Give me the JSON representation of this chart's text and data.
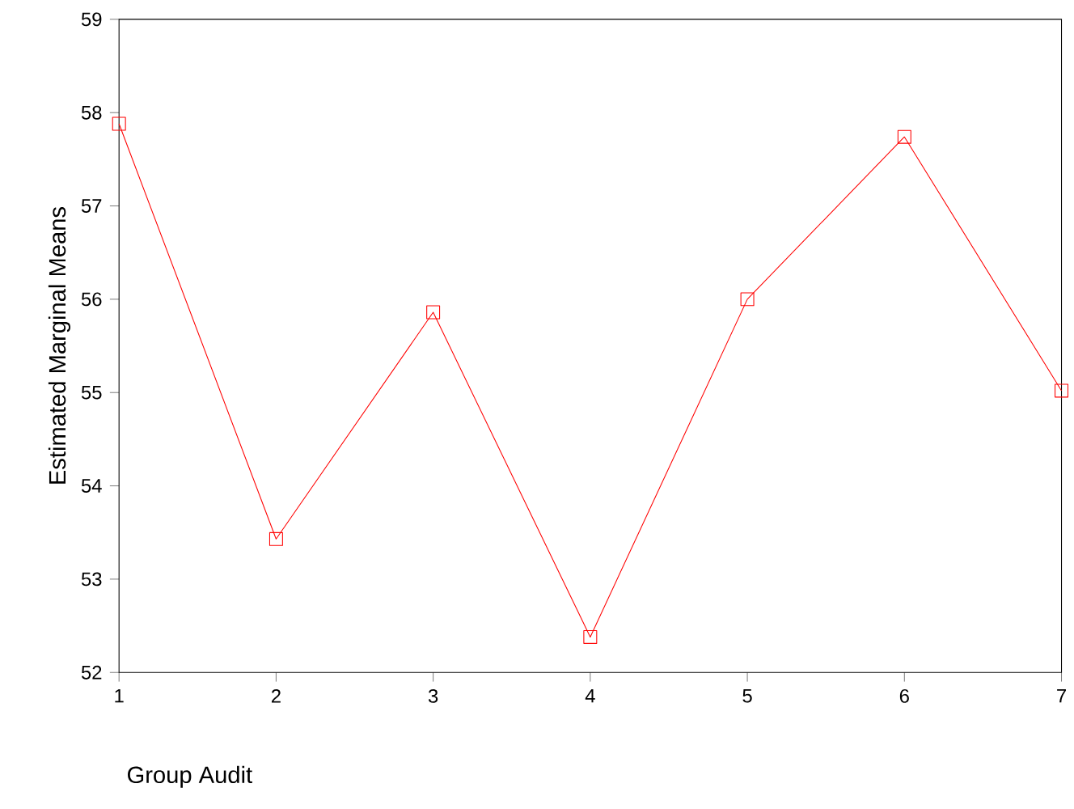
{
  "chart_data": {
    "type": "line",
    "xlabel": "Group Audit",
    "ylabel": "Estimated Marginal Means",
    "categories": [
      "1",
      "2",
      "3",
      "4",
      "5",
      "6",
      "7"
    ],
    "series": [
      {
        "color": "#ff0000",
        "values": [
          57.88,
          53.43,
          55.86,
          52.38,
          56.0,
          57.74,
          55.02
        ]
      }
    ],
    "ylim": [
      52,
      59
    ],
    "yticks": [
      52,
      53,
      54,
      55,
      56,
      57,
      58,
      59
    ],
    "marker": "square",
    "line_style": "solid"
  }
}
